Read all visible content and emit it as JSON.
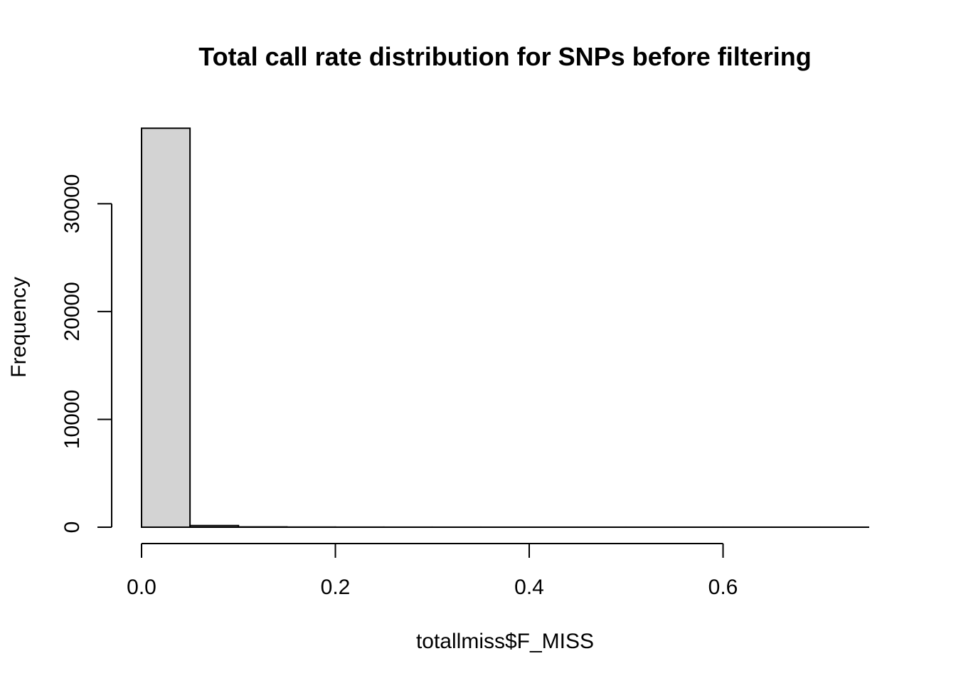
{
  "chart_data": {
    "type": "bar",
    "subtype": "histogram",
    "title": "Total call rate distribution for SNPs before filtering",
    "xlabel": "totallmiss$F_MISS",
    "ylabel": "Frequency",
    "bins": [
      {
        "x0": 0.0,
        "x1": 0.05,
        "count": 37000
      },
      {
        "x0": 0.05,
        "x1": 0.1,
        "count": 150
      },
      {
        "x0": 0.1,
        "x1": 0.15,
        "count": 25
      },
      {
        "x0": 0.15,
        "x1": 0.2,
        "count": 10
      },
      {
        "x0": 0.2,
        "x1": 0.25,
        "count": 5
      },
      {
        "x0": 0.25,
        "x1": 0.3,
        "count": 3
      },
      {
        "x0": 0.3,
        "x1": 0.35,
        "count": 2
      },
      {
        "x0": 0.35,
        "x1": 0.4,
        "count": 1
      },
      {
        "x0": 0.4,
        "x1": 0.45,
        "count": 1
      },
      {
        "x0": 0.45,
        "x1": 0.5,
        "count": 1
      },
      {
        "x0": 0.5,
        "x1": 0.55,
        "count": 1
      },
      {
        "x0": 0.55,
        "x1": 0.6,
        "count": 1
      },
      {
        "x0": 0.6,
        "x1": 0.65,
        "count": 1
      },
      {
        "x0": 0.65,
        "x1": 0.7,
        "count": 1
      },
      {
        "x0": 0.7,
        "x1": 0.75,
        "count": 1
      }
    ],
    "xticks": [
      {
        "value": 0.0,
        "label": "0.0"
      },
      {
        "value": 0.2,
        "label": "0.2"
      },
      {
        "value": 0.4,
        "label": "0.4"
      },
      {
        "value": 0.6,
        "label": "0.6"
      }
    ],
    "yticks": [
      {
        "value": 0,
        "label": "0"
      },
      {
        "value": 10000,
        "label": "10000"
      },
      {
        "value": 20000,
        "label": "20000"
      },
      {
        "value": 30000,
        "label": "30000"
      }
    ],
    "xlim": [
      0,
      0.75
    ],
    "ylim": [
      0,
      37000
    ],
    "bar_fill": "#d3d3d3",
    "bar_stroke": "#000000",
    "grid": false,
    "legend": "none"
  }
}
